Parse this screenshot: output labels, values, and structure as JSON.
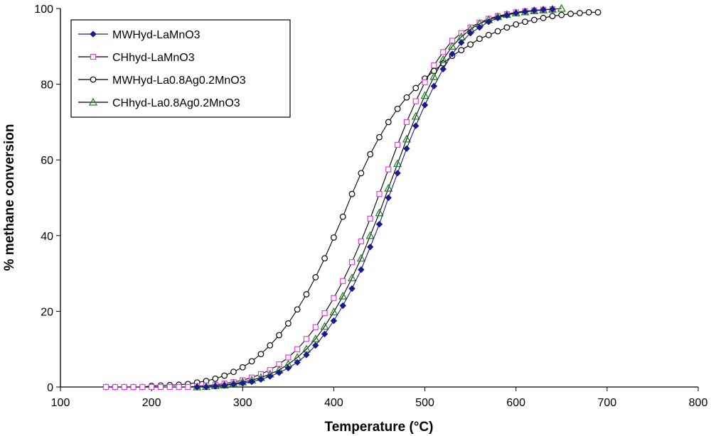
{
  "chart_data": {
    "type": "line",
    "title": "",
    "xlabel": "Temperature (°C)",
    "ylabel": "% methane conversion",
    "xlim": [
      100,
      800
    ],
    "ylim": [
      0,
      100
    ],
    "xticks": [
      100,
      200,
      300,
      400,
      500,
      600,
      700,
      800
    ],
    "yticks": [
      0,
      20,
      40,
      60,
      80,
      100
    ],
    "grid": false,
    "legend_position": "top-left",
    "series": [
      {
        "name": "MWHyd-LaMnO3",
        "color": "#1a1a8c",
        "marker": "diamond",
        "x": [
          250,
          260,
          270,
          280,
          290,
          300,
          310,
          320,
          330,
          340,
          350,
          360,
          370,
          380,
          390,
          400,
          410,
          420,
          430,
          440,
          450,
          460,
          470,
          480,
          490,
          500,
          510,
          520,
          530,
          540,
          550,
          560,
          570,
          580,
          590,
          600,
          610,
          620,
          630,
          640
        ],
        "y": [
          0,
          0,
          0.2,
          0.4,
          0.7,
          1,
          1.4,
          2,
          2.8,
          3.8,
          5,
          6.5,
          8.5,
          11,
          14,
          17.5,
          21.5,
          26,
          31,
          37,
          43,
          50,
          56.5,
          63,
          69,
          74.5,
          79.5,
          84,
          88,
          91,
          93.5,
          95,
          96.5,
          97.5,
          98.2,
          98.8,
          99.2,
          99.5,
          99.7,
          99.8
        ]
      },
      {
        "name": "CHhyd-LaMnO3",
        "color": "#e040e0",
        "marker": "square",
        "x": [
          150,
          160,
          170,
          180,
          190,
          200,
          210,
          220,
          230,
          240,
          250,
          260,
          270,
          280,
          290,
          300,
          310,
          320,
          330,
          340,
          350,
          360,
          370,
          380,
          390,
          400,
          410,
          420,
          430,
          440,
          450,
          460,
          470,
          480,
          490,
          500,
          510,
          520,
          530,
          540,
          550,
          560,
          570,
          580,
          590,
          600,
          610,
          620,
          630,
          640
        ],
        "y": [
          0,
          0,
          0,
          0,
          0,
          0,
          0,
          0,
          0,
          0,
          0.2,
          0.4,
          0.6,
          0.9,
          1.3,
          1.8,
          2.5,
          3.4,
          4.5,
          6,
          7.8,
          10,
          12.7,
          15.8,
          19.5,
          23.5,
          28,
          33,
          38.5,
          44.5,
          51,
          57.5,
          64,
          70,
          75.5,
          80.5,
          85,
          88.5,
          91.5,
          93.5,
          95,
          96.3,
          97.3,
          98,
          98.5,
          99,
          99.3,
          99.5,
          99.7,
          99.8
        ]
      },
      {
        "name": "MWHyd-La0.8Ag0.2MnO3",
        "color": "#000000",
        "marker": "circle",
        "x": [
          150,
          160,
          170,
          180,
          190,
          200,
          210,
          220,
          230,
          240,
          250,
          260,
          270,
          280,
          290,
          300,
          310,
          320,
          330,
          340,
          350,
          360,
          370,
          380,
          390,
          400,
          410,
          420,
          430,
          440,
          450,
          460,
          470,
          480,
          490,
          500,
          510,
          520,
          530,
          540,
          550,
          560,
          570,
          580,
          590,
          600,
          610,
          620,
          630,
          640,
          650,
          660,
          670,
          680,
          690
        ],
        "y": [
          0,
          0,
          0,
          0,
          0,
          0.3,
          0.4,
          0.5,
          0.6,
          0.8,
          1.2,
          1.6,
          2.2,
          3,
          4,
          5.2,
          6.8,
          8.7,
          11,
          13.7,
          16.8,
          20.5,
          24.5,
          29,
          34,
          39.5,
          45,
          51,
          56.5,
          61.5,
          66,
          70,
          73.5,
          76.5,
          79,
          81.5,
          83.5,
          85.5,
          87.5,
          89,
          90.5,
          92,
          93,
          94,
          95,
          95.8,
          96.5,
          97,
          97.5,
          98,
          98.3,
          98.6,
          98.8,
          99,
          99
        ]
      },
      {
        "name": "CHhyd-La0.8Ag0.2MnO3",
        "color": "#1f8a1f",
        "marker": "triangle",
        "x": [
          250,
          260,
          270,
          280,
          290,
          300,
          310,
          320,
          330,
          340,
          350,
          360,
          370,
          380,
          390,
          400,
          410,
          420,
          430,
          440,
          450,
          460,
          470,
          480,
          490,
          500,
          510,
          520,
          530,
          540,
          550,
          560,
          570,
          580,
          590,
          600,
          610,
          620,
          630,
          640,
          650
        ],
        "y": [
          0,
          0.1,
          0.3,
          0.5,
          0.9,
          1.3,
          1.8,
          2.5,
          3.4,
          4.5,
          6,
          7.8,
          10,
          12.7,
          16,
          19.8,
          24,
          28.8,
          34,
          40,
          46,
          52.5,
          59,
          65.5,
          71.5,
          77,
          82,
          86.5,
          90,
          92.5,
          94.5,
          96,
          97,
          97.8,
          98.4,
          98.8,
          99.1,
          99.4,
          99.6,
          99.8,
          100
        ]
      }
    ]
  }
}
